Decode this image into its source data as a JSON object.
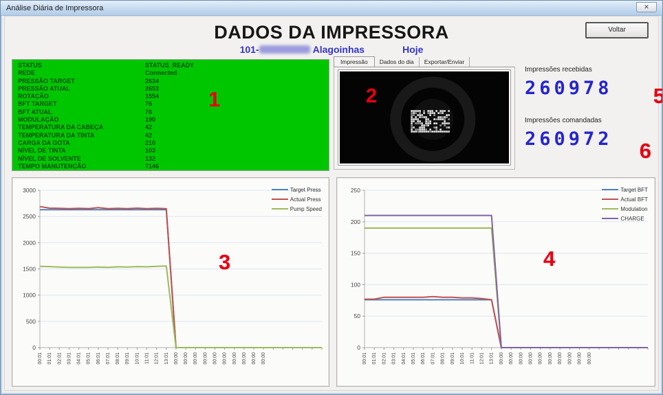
{
  "window": {
    "title": "Análise Diária de Impressora",
    "close_icon": "✕"
  },
  "header": {
    "title": "DADOS DA IMPRESSORA",
    "branch_prefix": "101-",
    "branch_city": "Alagoinhas",
    "period": "Hoje",
    "voltar_label": "Voltar"
  },
  "tabs": [
    {
      "label": "Impressão",
      "active": true
    },
    {
      "label": "Dados do dia",
      "active": false
    },
    {
      "label": "Exportar/Enviar",
      "active": false
    }
  ],
  "status": {
    "rows": [
      {
        "label": "STATUS",
        "value": "STATUS_READY"
      },
      {
        "label": "REDE",
        "value": "Connected"
      },
      {
        "label": "PRESSÃO TARGET",
        "value": "2634"
      },
      {
        "label": "PRESSÃO ATUAL",
        "value": "2653"
      },
      {
        "label": "ROTAÇÃO",
        "value": "1554"
      },
      {
        "label": "BFT TARGET",
        "value": "76"
      },
      {
        "label": "BFT ATUAL",
        "value": "76"
      },
      {
        "label": "MODULAÇÃO",
        "value": "190"
      },
      {
        "label": "TEMPERATURA DA CABEÇA",
        "value": "42"
      },
      {
        "label": "TEMPERATURA DA TINTA",
        "value": "42"
      },
      {
        "label": "CARGA DA GOTA",
        "value": "210"
      },
      {
        "label": "NÍVEL DE TINTA",
        "value": "103"
      },
      {
        "label": "NÍVEL DE SOLVENTE",
        "value": "132"
      },
      {
        "label": "TEMPO MANUTENÇÃO",
        "value": "7146"
      }
    ]
  },
  "counters": {
    "received_label": "Impressões recebidas",
    "received_value": "260978",
    "commanded_label": "Impressões comandadas",
    "commanded_value": "260972"
  },
  "annotations": {
    "n1": "1",
    "n2": "2",
    "n3": "3",
    "n4": "4",
    "n5": "5",
    "n6": "6"
  },
  "colors": {
    "accent_blue": "#3333cc",
    "status_green_bg": "#00c600",
    "annotation_red": "#e60012",
    "counter_blue": "#2525cd"
  },
  "chart_data": [
    {
      "type": "line",
      "name": "pressure-chart",
      "x_labels": [
        "00:01",
        "01:01",
        "02:01",
        "03:01",
        "04:01",
        "05:01",
        "06:01",
        "07:01",
        "08:01",
        "09:01",
        "10:01",
        "11:01",
        "12:01",
        "13:01",
        "00:00",
        "00:00",
        "00:00",
        "00:00",
        "00:00",
        "00:00",
        "00:00",
        "00:00",
        "00:00",
        "00:00",
        "",
        "",
        "",
        "",
        "",
        ""
      ],
      "ylim": [
        0,
        3000
      ],
      "ytick": 500,
      "grid": true,
      "legend_position": "top-right",
      "series": [
        {
          "name": "Target Press",
          "color": "#4F81BD",
          "values": [
            2630,
            2630,
            2630,
            2630,
            2630,
            2630,
            2630,
            2630,
            2630,
            2630,
            2630,
            2630,
            2630,
            2630,
            0,
            0,
            0,
            0,
            0,
            0,
            0,
            0,
            0,
            0,
            0,
            0,
            0,
            0,
            0,
            0
          ]
        },
        {
          "name": "Actual Press",
          "color": "#C0504D",
          "values": [
            2690,
            2660,
            2655,
            2650,
            2655,
            2650,
            2668,
            2650,
            2655,
            2650,
            2660,
            2650,
            2655,
            2650,
            0,
            0,
            0,
            0,
            0,
            0,
            0,
            0,
            0,
            0,
            0,
            0,
            0,
            0,
            0,
            0
          ]
        },
        {
          "name": "Pump Speed",
          "color": "#9BBB59",
          "values": [
            1550,
            1545,
            1535,
            1530,
            1530,
            1530,
            1535,
            1530,
            1540,
            1535,
            1545,
            1540,
            1550,
            1555,
            0,
            0,
            0,
            0,
            0,
            0,
            0,
            0,
            0,
            0,
            0,
            0,
            0,
            0,
            0,
            0
          ]
        }
      ]
    },
    {
      "type": "line",
      "name": "bft-chart",
      "x_labels": [
        "00:01",
        "01:01",
        "02:01",
        "03:01",
        "04:01",
        "05:01",
        "06:01",
        "07:01",
        "08:01",
        "09:01",
        "10:01",
        "11:01",
        "12:01",
        "13:01",
        "00:00",
        "00:00",
        "00:00",
        "00:00",
        "00:00",
        "00:00",
        "00:00",
        "00:00",
        "00:00",
        "00:00",
        "",
        "",
        "",
        "",
        "",
        ""
      ],
      "ylim": [
        0,
        250
      ],
      "ytick": 50,
      "grid": true,
      "legend_position": "top-right",
      "series": [
        {
          "name": "Target BFT",
          "color": "#4F81BD",
          "values": [
            76,
            76,
            76,
            76,
            76,
            76,
            76,
            76,
            76,
            76,
            76,
            76,
            76,
            76,
            0,
            0,
            0,
            0,
            0,
            0,
            0,
            0,
            0,
            0,
            0,
            0,
            0,
            0,
            0,
            0
          ]
        },
        {
          "name": "Actual BFT",
          "color": "#C0504D",
          "values": [
            77,
            77,
            80,
            80,
            80,
            80,
            80,
            81,
            80,
            80,
            79,
            79,
            78,
            76,
            0,
            0,
            0,
            0,
            0,
            0,
            0,
            0,
            0,
            0,
            0,
            0,
            0,
            0,
            0,
            0
          ]
        },
        {
          "name": "Modulation",
          "color": "#9BBB59",
          "values": [
            190,
            190,
            190,
            190,
            190,
            190,
            190,
            190,
            190,
            190,
            190,
            190,
            190,
            190,
            0,
            0,
            0,
            0,
            0,
            0,
            0,
            0,
            0,
            0,
            0,
            0,
            0,
            0,
            0,
            0
          ]
        },
        {
          "name": "CHARGE",
          "color": "#8064A2",
          "values": [
            210,
            210,
            210,
            210,
            210,
            210,
            210,
            210,
            210,
            210,
            210,
            210,
            210,
            210,
            0,
            0,
            0,
            0,
            0,
            0,
            0,
            0,
            0,
            0,
            0,
            0,
            0,
            0,
            0,
            0
          ]
        }
      ]
    }
  ]
}
